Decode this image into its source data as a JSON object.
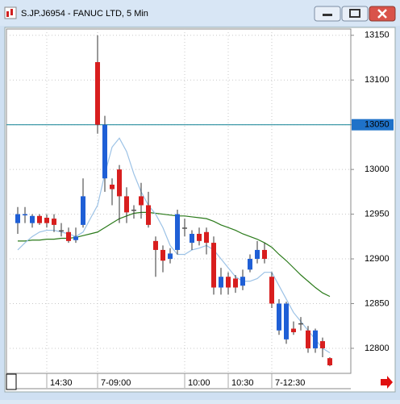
{
  "window_title": "S.JP.J6954 - FANUC LTD, 5 Min",
  "chart_data": {
    "type": "candlestick",
    "categories": [
      null,
      null,
      null,
      null,
      "14:30",
      null,
      null,
      null,
      null,
      null,
      null,
      "7-09:00",
      null,
      null,
      null,
      null,
      null,
      null,
      null,
      null,
      null,
      null,
      null,
      "10:00",
      null,
      null,
      null,
      null,
      null,
      "10:30",
      null,
      null,
      null,
      null,
      null,
      "7-12:30",
      null,
      null,
      null,
      null,
      null,
      null,
      null,
      null
    ],
    "open": [
      12940,
      12949,
      12940,
      12948,
      12946,
      12945,
      12932,
      12930,
      12921,
      12938,
      null,
      13120,
      12990,
      12983,
      13000,
      12970,
      12955,
      12970,
      12960,
      12920,
      12910,
      12900,
      12910,
      12935,
      12918,
      12928,
      12930,
      12918,
      12868,
      12880,
      12878,
      12870,
      12888,
      12900,
      12910,
      12880,
      12820,
      12810,
      12822,
      12828,
      12820,
      12800,
      12808,
      12789
    ],
    "high": [
      12958,
      12958,
      12950,
      12950,
      12950,
      12950,
      12940,
      12935,
      12935,
      12990,
      null,
      13150,
      13060,
      12990,
      13005,
      12980,
      12960,
      12985,
      12975,
      12925,
      12915,
      12912,
      12955,
      12945,
      12932,
      12935,
      12935,
      12925,
      12890,
      12885,
      12882,
      12888,
      12905,
      12920,
      12918,
      12885,
      12855,
      12852,
      12830,
      12835,
      12825,
      12822,
      12812,
      12790
    ],
    "low": [
      12928,
      12940,
      12935,
      12938,
      12935,
      12930,
      12925,
      12918,
      12918,
      12935,
      null,
      13040,
      12975,
      12960,
      12940,
      12940,
      12945,
      12945,
      12935,
      12880,
      12885,
      12895,
      12905,
      12925,
      12910,
      12915,
      12905,
      12860,
      12860,
      12860,
      12862,
      12865,
      12885,
      12895,
      12895,
      12845,
      12815,
      12805,
      12815,
      12820,
      12795,
      12795,
      12790,
      12780
    ],
    "close": [
      12950,
      12950,
      12948,
      12940,
      12940,
      12938,
      12932,
      12920,
      12925,
      12970,
      null,
      13050,
      13050,
      12978,
      12970,
      12952,
      12955,
      12960,
      12938,
      12910,
      12898,
      12906,
      12950,
      12935,
      12928,
      12920,
      12918,
      12868,
      12880,
      12868,
      12868,
      12880,
      12900,
      12910,
      12900,
      12850,
      12850,
      12850,
      12818,
      12828,
      12800,
      12820,
      12800,
      12781
    ],
    "up_color": "#1f5fd6",
    "down_color": "#d81e1e",
    "doji_color": "#555555",
    "series": [
      {
        "color": "#2a7a1a",
        "values": [
          12920,
          12920,
          12921,
          12921,
          12922,
          12922,
          12923,
          12923,
          12924,
          12926,
          12928,
          12930,
          12935,
          12940,
          12945,
          12948,
          12951,
          12952,
          12952,
          12951,
          12950,
          12949,
          12948,
          12948,
          12947,
          12946,
          12945,
          12942,
          12938,
          12935,
          12932,
          12928,
          12925,
          12922,
          12918,
          12913,
          12905,
          12898,
          12890,
          12882,
          12875,
          12868,
          12862,
          12858
        ]
      },
      {
        "color": "#9cc2e6",
        "values": [
          12910,
          12918,
          12925,
          12930,
          12932,
          12932,
          12930,
          12928,
          12925,
          12930,
          12945,
          12960,
          12995,
          13025,
          13035,
          13020,
          12995,
          12975,
          12960,
          12950,
          12935,
          12915,
          12905,
          12905,
          12910,
          12912,
          12915,
          12910,
          12900,
          12890,
          12880,
          12875,
          12875,
          12878,
          12885,
          12885,
          12870,
          12855,
          12840,
          12830,
          12820,
          12810,
          12800,
          12795
        ]
      }
    ],
    "hline": {
      "value": 13050,
      "color": "#2a8fa0"
    },
    "ylim": [
      12772,
      13157
    ],
    "yticks": [
      12800,
      12850,
      12900,
      12950,
      13000,
      13050,
      13100,
      13150
    ],
    "grid": true
  }
}
